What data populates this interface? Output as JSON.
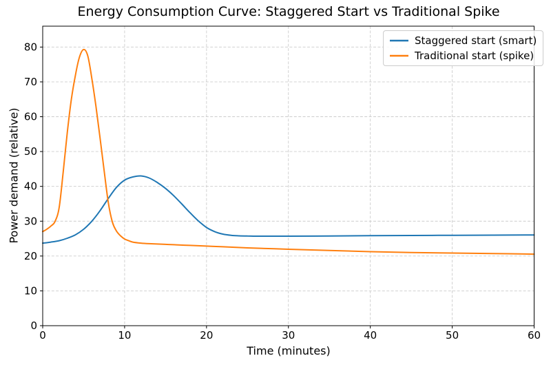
{
  "chart_data": {
    "type": "line",
    "title": "Energy Consumption Curve: Staggered Start vs Traditional Spike",
    "xlabel": "Time (minutes)",
    "ylabel": "Power demand (relative)",
    "xlim": [
      0,
      60
    ],
    "ylim": [
      0,
      86
    ],
    "x_ticks": [
      0,
      10,
      20,
      30,
      40,
      50,
      60
    ],
    "y_ticks": [
      0,
      10,
      20,
      30,
      40,
      50,
      60,
      70,
      80
    ],
    "grid": true,
    "grid_color": "#cccccc",
    "legend_position": "upper right",
    "series": [
      {
        "name": "Staggered start (smart)",
        "color": "#1f77b4",
        "peak": {
          "t": 12,
          "value": 43.0
        },
        "points": [
          [
            0,
            23.7
          ],
          [
            1,
            24.0
          ],
          [
            2,
            24.4
          ],
          [
            3,
            25.1
          ],
          [
            4,
            26.1
          ],
          [
            5,
            27.7
          ],
          [
            6,
            30.0
          ],
          [
            7,
            33.0
          ],
          [
            8,
            36.5
          ],
          [
            9,
            39.7
          ],
          [
            10,
            41.8
          ],
          [
            11,
            42.7
          ],
          [
            12,
            43.0
          ],
          [
            13,
            42.4
          ],
          [
            14,
            41.1
          ],
          [
            15,
            39.4
          ],
          [
            16,
            37.3
          ],
          [
            17,
            34.9
          ],
          [
            18,
            32.4
          ],
          [
            19,
            30.1
          ],
          [
            20,
            28.2
          ],
          [
            21,
            27.0
          ],
          [
            22,
            26.3
          ],
          [
            23,
            25.95
          ],
          [
            24,
            25.8
          ],
          [
            25,
            25.75
          ],
          [
            26,
            25.7
          ],
          [
            28,
            25.7
          ],
          [
            30,
            25.7
          ],
          [
            35,
            25.75
          ],
          [
            40,
            25.85
          ],
          [
            45,
            25.9
          ],
          [
            50,
            25.95
          ],
          [
            55,
            26.0
          ],
          [
            60,
            26.05
          ]
        ]
      },
      {
        "name": "Traditional start (spike)",
        "color": "#ff7f0e",
        "peak": {
          "t": 5,
          "value": 79.3
        },
        "points": [
          [
            0,
            27.0
          ],
          [
            0.5,
            27.7
          ],
          [
            1,
            28.6
          ],
          [
            1.5,
            29.9
          ],
          [
            2,
            33.8
          ],
          [
            2.5,
            44.0
          ],
          [
            3,
            55.5
          ],
          [
            3.5,
            65.0
          ],
          [
            4,
            72.0
          ],
          [
            4.5,
            77.2
          ],
          [
            5,
            79.3
          ],
          [
            5.5,
            77.5
          ],
          [
            6,
            71.0
          ],
          [
            6.5,
            63.0
          ],
          [
            7,
            54.0
          ],
          [
            7.5,
            44.5
          ],
          [
            8,
            35.5
          ],
          [
            8.5,
            29.8
          ],
          [
            9,
            27.2
          ],
          [
            9.5,
            25.8
          ],
          [
            10,
            24.9
          ],
          [
            10.5,
            24.4
          ],
          [
            11,
            24.0
          ],
          [
            12,
            23.7
          ],
          [
            13,
            23.55
          ],
          [
            14,
            23.45
          ],
          [
            15,
            23.35
          ],
          [
            16,
            23.25
          ],
          [
            18,
            23.05
          ],
          [
            20,
            22.85
          ],
          [
            22,
            22.65
          ],
          [
            25,
            22.35
          ],
          [
            30,
            21.95
          ],
          [
            35,
            21.6
          ],
          [
            40,
            21.25
          ],
          [
            45,
            21.0
          ],
          [
            50,
            20.85
          ],
          [
            55,
            20.7
          ],
          [
            60,
            20.55
          ]
        ]
      }
    ]
  }
}
